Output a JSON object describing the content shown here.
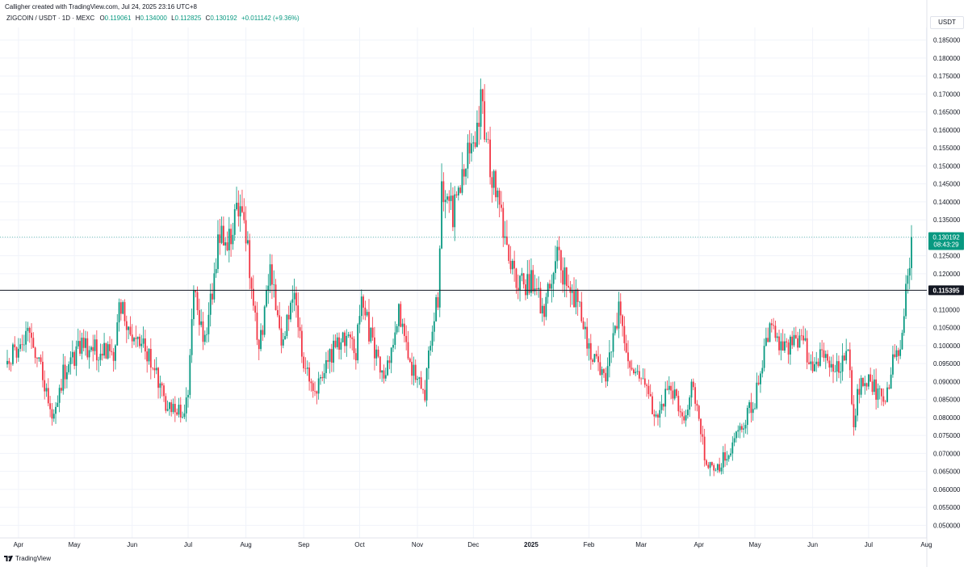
{
  "header": {
    "text": "Calligher created with TradingView.com, Jul 24, 2025 23:16 UTC+8"
  },
  "legend": {
    "symbol": "ZIGCOIN / USDT · 1D · MEXC",
    "open_label": "O",
    "open": "0.119061",
    "high_label": "H",
    "high": "0.134000",
    "low_label": "L",
    "low": "0.112825",
    "close_label": "C",
    "close": "0.130192",
    "change": "+0.011142 (+9.36%)"
  },
  "currency": "USDT",
  "footer": {
    "brand": "TradingView"
  },
  "colors": {
    "up": "#089981",
    "down": "#f23645",
    "grid": "#f0f3fa",
    "hline": "#131722",
    "price_line": "#089981"
  },
  "chart_data": {
    "type": "candlestick",
    "ylim": [
      0.0465,
      0.1885
    ],
    "y_ticks": [
      "0.185000",
      "0.180000",
      "0.175000",
      "0.170000",
      "0.165000",
      "0.160000",
      "0.155000",
      "0.150000",
      "0.145000",
      "0.140000",
      "0.135000",
      "0.130000",
      "0.125000",
      "0.120000",
      "0.115000",
      "0.110000",
      "0.105000",
      "0.100000",
      "0.095000",
      "0.090000",
      "0.085000",
      "0.080000",
      "0.075000",
      "0.070000",
      "0.065000",
      "0.060000",
      "0.055000",
      "0.050000"
    ],
    "x_labels": [
      {
        "label": "Apr",
        "date": "2024-04-01"
      },
      {
        "label": "May",
        "date": "2024-05-01"
      },
      {
        "label": "Jun",
        "date": "2024-06-01"
      },
      {
        "label": "Jul",
        "date": "2024-07-01"
      },
      {
        "label": "Aug",
        "date": "2024-08-01"
      },
      {
        "label": "Sep",
        "date": "2024-09-01"
      },
      {
        "label": "Oct",
        "date": "2024-10-01"
      },
      {
        "label": "Nov",
        "date": "2024-11-01"
      },
      {
        "label": "Dec",
        "date": "2024-12-01"
      },
      {
        "label": "2025",
        "date": "2025-01-01"
      },
      {
        "label": "Feb",
        "date": "2025-02-01"
      },
      {
        "label": "Mar",
        "date": "2025-03-01"
      },
      {
        "label": "Apr",
        "date": "2025-04-01"
      },
      {
        "label": "May",
        "date": "2025-05-01"
      },
      {
        "label": "Jun",
        "date": "2025-06-01"
      },
      {
        "label": "Jul",
        "date": "2025-07-01"
      },
      {
        "label": "Aug",
        "date": "2025-08-01"
      }
    ],
    "horizontal_line": {
      "value": 0.115395,
      "label": "0.115395"
    },
    "last_price": {
      "value": 0.130192,
      "label": "0.130192",
      "countdown": "08:43:29"
    },
    "close_path": [
      [
        "2024-03-26",
        0.096
      ],
      [
        "2024-04-05",
        0.103
      ],
      [
        "2024-04-12",
        0.096
      ],
      [
        "2024-04-19",
        0.078
      ],
      [
        "2024-04-25",
        0.092
      ],
      [
        "2024-05-05",
        0.1
      ],
      [
        "2024-05-12",
        0.099
      ],
      [
        "2024-05-22",
        0.097
      ],
      [
        "2024-05-25",
        0.112
      ],
      [
        "2024-06-02",
        0.1
      ],
      [
        "2024-06-08",
        0.099
      ],
      [
        "2024-06-14",
        0.092
      ],
      [
        "2024-06-20",
        0.082
      ],
      [
        "2024-06-28",
        0.081
      ],
      [
        "2024-07-01",
        0.086
      ],
      [
        "2024-07-04",
        0.118
      ],
      [
        "2024-07-10",
        0.1
      ],
      [
        "2024-07-18",
        0.132
      ],
      [
        "2024-07-22",
        0.126
      ],
      [
        "2024-07-27",
        0.14
      ],
      [
        "2024-08-02",
        0.127
      ],
      [
        "2024-08-08",
        0.097
      ],
      [
        "2024-08-14",
        0.123
      ],
      [
        "2024-08-20",
        0.1
      ],
      [
        "2024-08-27",
        0.113
      ],
      [
        "2024-09-02",
        0.092
      ],
      [
        "2024-09-08",
        0.087
      ],
      [
        "2024-09-14",
        0.096
      ],
      [
        "2024-09-22",
        0.103
      ],
      [
        "2024-09-29",
        0.098
      ],
      [
        "2024-10-02",
        0.113
      ],
      [
        "2024-10-07",
        0.102
      ],
      [
        "2024-10-14",
        0.091
      ],
      [
        "2024-10-22",
        0.11
      ],
      [
        "2024-10-30",
        0.092
      ],
      [
        "2024-11-05",
        0.087
      ],
      [
        "2024-11-08",
        0.103
      ],
      [
        "2024-11-12",
        0.113
      ],
      [
        "2024-11-14",
        0.143
      ],
      [
        "2024-11-20",
        0.137
      ],
      [
        "2024-11-27",
        0.153
      ],
      [
        "2024-12-02",
        0.16
      ],
      [
        "2024-12-05",
        0.167
      ],
      [
        "2024-12-10",
        0.15
      ],
      [
        "2024-12-15",
        0.138
      ],
      [
        "2024-12-20",
        0.123
      ],
      [
        "2024-12-27",
        0.117
      ],
      [
        "2025-01-02",
        0.118
      ],
      [
        "2025-01-08",
        0.108
      ],
      [
        "2025-01-14",
        0.126
      ],
      [
        "2025-01-20",
        0.117
      ],
      [
        "2025-01-26",
        0.112
      ],
      [
        "2025-02-02",
        0.097
      ],
      [
        "2025-02-10",
        0.091
      ],
      [
        "2025-02-17",
        0.11
      ],
      [
        "2025-02-24",
        0.093
      ],
      [
        "2025-03-03",
        0.088
      ],
      [
        "2025-03-10",
        0.078
      ],
      [
        "2025-03-16",
        0.091
      ],
      [
        "2025-03-23",
        0.08
      ],
      [
        "2025-03-29",
        0.089
      ],
      [
        "2025-04-04",
        0.07
      ],
      [
        "2025-04-09",
        0.064
      ],
      [
        "2025-04-17",
        0.071
      ],
      [
        "2025-04-24",
        0.078
      ],
      [
        "2025-05-01",
        0.085
      ],
      [
        "2025-05-09",
        0.105
      ],
      [
        "2025-05-16",
        0.098
      ],
      [
        "2025-05-25",
        0.103
      ],
      [
        "2025-06-01",
        0.094
      ],
      [
        "2025-06-08",
        0.098
      ],
      [
        "2025-06-14",
        0.093
      ],
      [
        "2025-06-20",
        0.098
      ],
      [
        "2025-06-23",
        0.079
      ],
      [
        "2025-06-27",
        0.092
      ],
      [
        "2025-07-04",
        0.088
      ],
      [
        "2025-07-10",
        0.085
      ],
      [
        "2025-07-14",
        0.095
      ],
      [
        "2025-07-18",
        0.1
      ],
      [
        "2025-07-22",
        0.119
      ],
      [
        "2025-07-24",
        0.130192
      ]
    ]
  }
}
